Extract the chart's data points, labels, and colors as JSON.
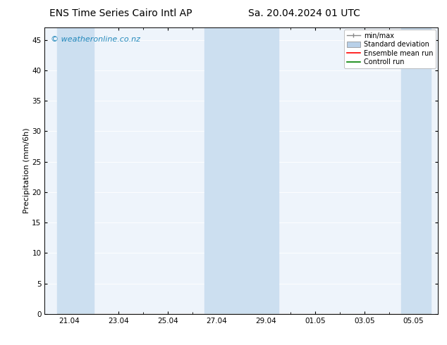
{
  "title_left": "ENS Time Series Cairo Intl AP",
  "title_right": "Sa. 20.04.2024 01 UTC",
  "ylabel": "Precipitation (mm/6h)",
  "watermark": "© weatheronline.co.nz",
  "bg_color": "#ffffff",
  "plot_bg_color": "#eef4fb",
  "shaded_band_color": "#ccdff0",
  "ylim": [
    0,
    47
  ],
  "yticks": [
    0,
    5,
    10,
    15,
    20,
    25,
    30,
    35,
    40,
    45
  ],
  "xtick_labels": [
    "21.04",
    "23.04",
    "25.04",
    "27.04",
    "29.04",
    "01.05",
    "03.05",
    "05.05"
  ],
  "legend_labels": [
    "min/max",
    "Standard deviation",
    "Ensemble mean run",
    "Controll run"
  ],
  "ensemble_mean_color": "#ff0000",
  "control_run_color": "#008000",
  "minmax_color": "#888888",
  "std_color": "#b8d0e8",
  "title_fontsize": 10,
  "axis_label_fontsize": 8,
  "tick_fontsize": 7.5,
  "watermark_color": "#2288bb",
  "watermark_fontsize": 8,
  "legend_fontsize": 7
}
